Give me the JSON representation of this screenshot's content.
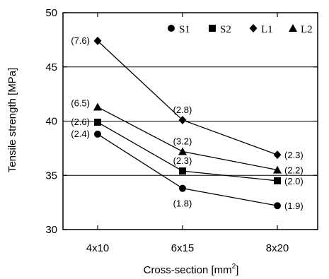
{
  "chart_data": {
    "type": "line",
    "categories": [
      "4x10",
      "6x15",
      "8x20"
    ],
    "xlabel": "Cross-section [mm",
    "xlabel_superscript": "2",
    "xlabel_suffix": "]",
    "ylabel": "Tensile strength [MPa]",
    "ylim": [
      30,
      50
    ],
    "yticks": [
      30,
      35,
      40,
      45,
      50
    ],
    "grid": "horizontal",
    "legend_position": "top-right",
    "series": [
      {
        "name": "S1",
        "marker": "circle",
        "values": [
          38.8,
          33.8,
          32.2
        ],
        "labels": [
          "(2.4)",
          "(1.8)",
          "(1.9)"
        ]
      },
      {
        "name": "S2",
        "marker": "square",
        "values": [
          39.9,
          35.4,
          34.5
        ],
        "labels": [
          "(2.6)",
          "(2.3)",
          "(2.0)"
        ]
      },
      {
        "name": "L1",
        "marker": "diamond",
        "values": [
          47.4,
          40.1,
          36.9
        ],
        "labels": [
          "(7.6)",
          "(2.8)",
          "(2.3)"
        ]
      },
      {
        "name": "L2",
        "marker": "triangle",
        "values": [
          41.3,
          37.2,
          35.5
        ],
        "labels": [
          "(6.5)",
          "(3.2)",
          "(2.2)"
        ]
      }
    ]
  }
}
